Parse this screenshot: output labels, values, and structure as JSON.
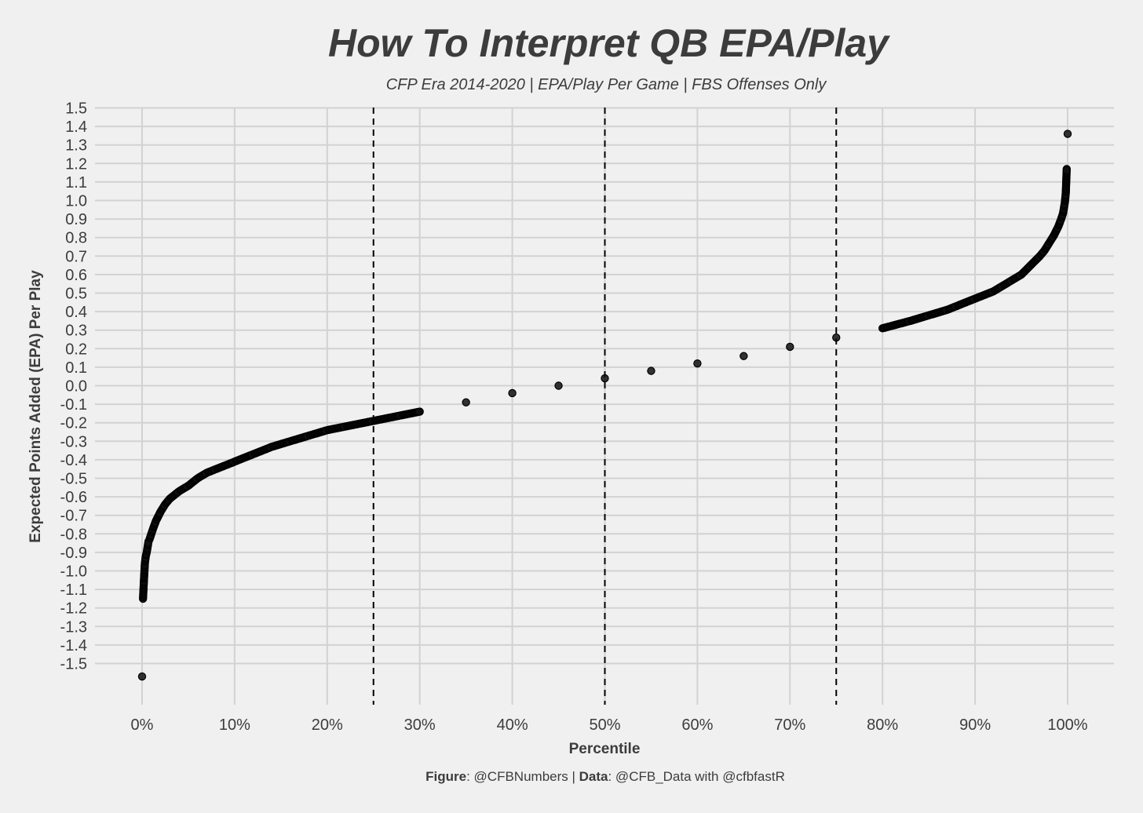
{
  "chart_data": {
    "type": "scatter",
    "title": "How To Interpret QB EPA/Play",
    "subtitle": "CFP Era 2014-2020 | EPA/Play Per Game | FBS Offenses Only",
    "xlabel": "Percentile",
    "ylabel": "Expected Points Added (EPA) Per Play",
    "xlim": [
      0,
      100
    ],
    "ylim": [
      -1.5,
      1.5
    ],
    "x_ticks": [
      "0%",
      "10%",
      "20%",
      "30%",
      "40%",
      "50%",
      "60%",
      "70%",
      "80%",
      "90%",
      "100%"
    ],
    "y_ticks": [
      "1.5",
      "1.4",
      "1.3",
      "1.2",
      "1.1",
      "1.0",
      "0.9",
      "0.8",
      "0.7",
      "0.6",
      "0.5",
      "0.4",
      "0.3",
      "0.2",
      "0.1",
      "0.0",
      "-0.1",
      "-0.2",
      "-0.3",
      "-0.4",
      "-0.5",
      "-0.6",
      "-0.7",
      "-0.8",
      "-0.9",
      "-1.0",
      "-1.1",
      "-1.2",
      "-1.3",
      "-1.4",
      "-1.5"
    ],
    "reference_lines_x": [
      25,
      50,
      75
    ],
    "grid": true,
    "series": [
      {
        "points": [
          [
            0.0,
            -1.57
          ],
          [
            0.1,
            -1.15
          ],
          [
            0.2,
            -1.05
          ],
          [
            0.3,
            -0.96
          ],
          [
            0.4,
            -0.92
          ],
          [
            0.5,
            -0.9
          ],
          [
            0.6,
            -0.87
          ],
          [
            0.7,
            -0.84
          ],
          [
            0.8,
            -0.83
          ],
          [
            1.0,
            -0.8
          ],
          [
            1.2,
            -0.77
          ],
          [
            1.5,
            -0.73
          ],
          [
            2.0,
            -0.68
          ],
          [
            2.5,
            -0.64
          ],
          [
            3.0,
            -0.61
          ],
          [
            4.0,
            -0.57
          ],
          [
            5.0,
            -0.54
          ],
          [
            6.0,
            -0.5
          ],
          [
            7.0,
            -0.47
          ],
          [
            8.0,
            -0.45
          ],
          [
            10.0,
            -0.41
          ],
          [
            12.0,
            -0.37
          ],
          [
            14.0,
            -0.33
          ],
          [
            16.0,
            -0.3
          ],
          [
            18.0,
            -0.27
          ],
          [
            20.0,
            -0.24
          ],
          [
            22.0,
            -0.22
          ],
          [
            25.0,
            -0.19
          ],
          [
            28.0,
            -0.16
          ],
          [
            30.0,
            -0.14
          ],
          [
            35.0,
            -0.09
          ],
          [
            40.0,
            -0.04
          ],
          [
            45.0,
            0.0
          ],
          [
            50.0,
            0.04
          ],
          [
            55.0,
            0.08
          ],
          [
            60.0,
            0.12
          ],
          [
            65.0,
            0.16
          ],
          [
            70.0,
            0.21
          ],
          [
            75.0,
            0.26
          ],
          [
            80.0,
            0.31
          ],
          [
            83.0,
            0.35
          ],
          [
            85.0,
            0.38
          ],
          [
            87.0,
            0.41
          ],
          [
            88.0,
            0.43
          ],
          [
            90.0,
            0.47
          ],
          [
            92.0,
            0.51
          ],
          [
            93.0,
            0.54
          ],
          [
            94.0,
            0.57
          ],
          [
            95.0,
            0.6
          ],
          [
            96.0,
            0.65
          ],
          [
            97.0,
            0.7
          ],
          [
            97.5,
            0.73
          ],
          [
            98.0,
            0.77
          ],
          [
            98.5,
            0.81
          ],
          [
            99.0,
            0.86
          ],
          [
            99.3,
            0.9
          ],
          [
            99.5,
            0.93
          ],
          [
            99.6,
            0.96
          ],
          [
            99.7,
            0.99
          ],
          [
            99.8,
            1.04
          ],
          [
            99.9,
            1.17
          ],
          [
            100.0,
            1.36
          ]
        ]
      }
    ],
    "caption_parts": [
      {
        "text": "Figure",
        "bold": true
      },
      {
        "text": ": @CFBNumbers | ",
        "bold": false
      },
      {
        "text": "Data",
        "bold": true
      },
      {
        "text": ": @CFB_Data with @cfbfastR",
        "bold": false
      }
    ]
  }
}
